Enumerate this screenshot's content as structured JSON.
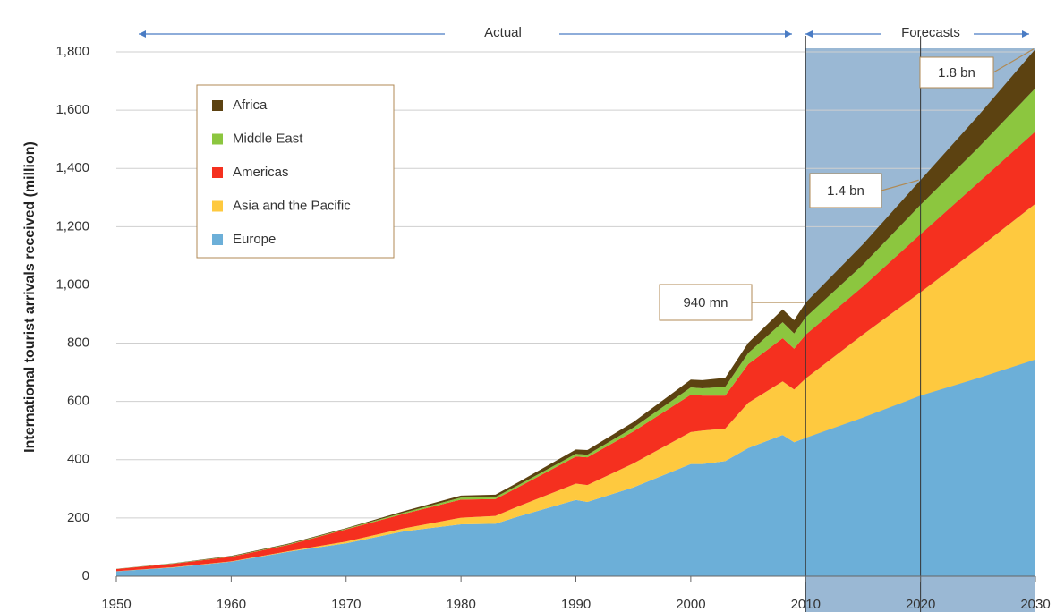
{
  "chart_data": {
    "type": "stacked_area",
    "y_label": "International tourist arrivals received (million)",
    "top_labels": [
      "Actual",
      "Forecasts"
    ],
    "x": [
      1950,
      1955,
      1960,
      1965,
      1970,
      1975,
      1980,
      1983,
      1985,
      1990,
      1991,
      1995,
      2000,
      2001,
      2003,
      2005,
      2008,
      2009,
      2010,
      2015,
      2020,
      2025,
      2030
    ],
    "series": [
      {
        "name": "Europe",
        "color": "#6cafd8",
        "values": [
          17,
          30,
          50,
          84,
          113,
          154,
          178,
          180,
          205,
          262,
          255,
          305,
          385,
          385,
          395,
          440,
          485,
          460,
          475,
          545,
          620,
          680,
          744
        ]
      },
      {
        "name": "Asia and the Pacific",
        "color": "#fec93f",
        "values": [
          0.2,
          1,
          1,
          2,
          6,
          10,
          23,
          27,
          35,
          56,
          58,
          82,
          110,
          115,
          112,
          155,
          184,
          181,
          204,
          285,
          355,
          445,
          535
        ]
      },
      {
        "name": "Americas",
        "color": "#f5301f",
        "values": [
          7.5,
          12,
          16,
          22,
          42,
          50,
          62,
          58,
          66,
          93,
          95,
          110,
          128,
          120,
          113,
          133,
          148,
          140,
          150,
          165,
          199,
          225,
          248
        ]
      },
      {
        "name": "Middle East",
        "color": "#8cc63f",
        "values": [
          0.2,
          1,
          1,
          2,
          2,
          4,
          7,
          7,
          7,
          9,
          9,
          13,
          25,
          25,
          30,
          38,
          55,
          52,
          60,
          75,
          101,
          120,
          149
        ]
      },
      {
        "name": "Africa",
        "color": "#5c4211",
        "values": [
          0.5,
          1,
          2,
          2,
          2,
          5,
          7,
          8,
          10,
          15,
          16,
          19,
          27,
          28,
          31,
          35,
          44,
          46,
          50,
          70,
          85,
          110,
          134
        ]
      }
    ],
    "annotations": [
      {
        "text": "940 mn",
        "x": 2010,
        "y": 940
      },
      {
        "text": "1.4 bn",
        "x": 2020,
        "y": 1360
      },
      {
        "text": "1.8 bn",
        "x": 2030,
        "y": 1810
      }
    ],
    "forecast_range": [
      2010,
      2030
    ],
    "forecast_lines": [
      2010,
      2020
    ],
    "xlim": [
      1950,
      2030
    ],
    "xticks": [
      1950,
      1960,
      1970,
      1980,
      1990,
      2000,
      2010,
      2020,
      2030
    ],
    "ylim": [
      0,
      1800
    ],
    "yticks": [
      0,
      200,
      400,
      600,
      800,
      {
        "value": 1000,
        "label": "1,000"
      },
      {
        "value": 1200,
        "label": "1,200"
      },
      {
        "value": 1400,
        "label": "1,400"
      },
      {
        "value": 1600,
        "label": "1,600"
      },
      {
        "value": 1800,
        "label": "1,800"
      }
    ],
    "grid": true,
    "legend": "upper left"
  }
}
